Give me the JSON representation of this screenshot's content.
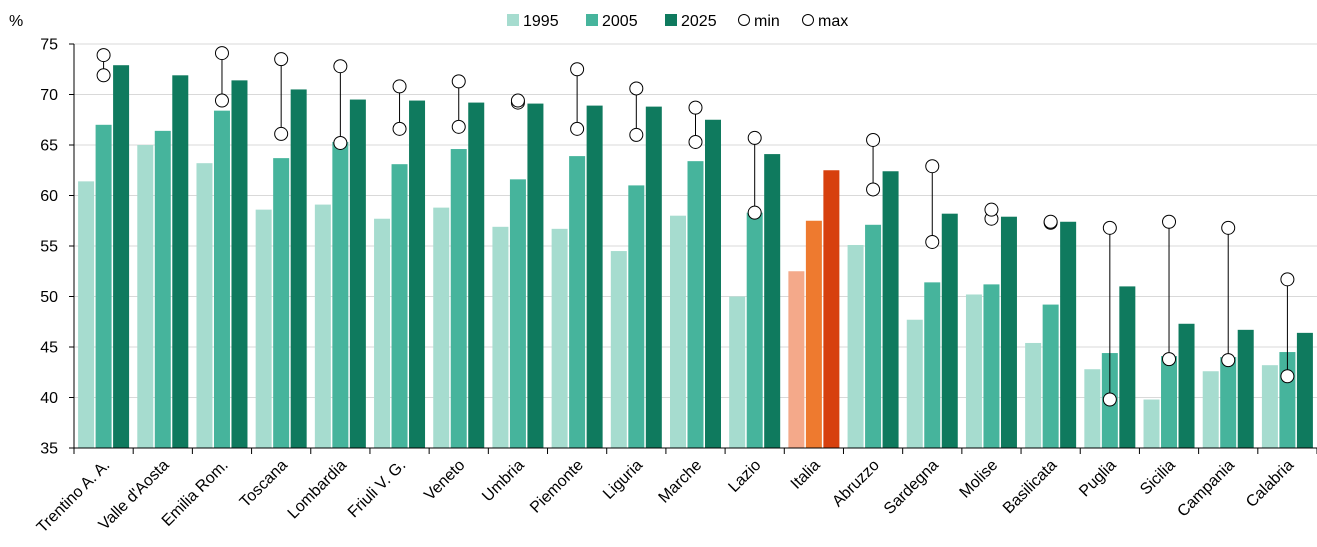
{
  "chart_data": {
    "type": "bar",
    "ylabel": "%",
    "ylim": [
      35,
      75
    ],
    "yticks": [
      35,
      40,
      45,
      50,
      55,
      60,
      65,
      70,
      75
    ],
    "grid": "horizontal",
    "legend_position": "top-center",
    "categories": [
      "Trentino A. A.",
      "Valle d'Aosta",
      "Emilia Rom.",
      "Toscana",
      "Lombardia",
      "Friuli V. G.",
      "Veneto",
      "Umbria",
      "Piemonte",
      "Liguria",
      "Marche",
      "Lazio",
      "Italia",
      "Abruzzo",
      "Sardegna",
      "Molise",
      "Basilicata",
      "Puglia",
      "Sicilia",
      "Campania",
      "Calabria"
    ],
    "highlight_category": "Italia",
    "series": [
      {
        "name": "1995",
        "color": "#a6dccf",
        "highlight_color": "#f4a98a",
        "values": [
          61.4,
          65.0,
          63.2,
          58.6,
          59.1,
          57.7,
          58.8,
          56.9,
          56.7,
          54.5,
          58.0,
          50.0,
          52.5,
          55.1,
          47.7,
          50.2,
          45.4,
          42.8,
          39.8,
          42.6,
          43.2
        ]
      },
      {
        "name": "2005",
        "color": "#46b49c",
        "highlight_color": "#ee7a2f",
        "values": [
          67.0,
          66.4,
          68.4,
          63.7,
          65.3,
          63.1,
          64.6,
          61.6,
          63.9,
          61.0,
          63.4,
          58.3,
          57.5,
          57.1,
          51.4,
          51.2,
          49.2,
          44.4,
          44.1,
          44.0,
          44.5
        ]
      },
      {
        "name": "2025",
        "color": "#0f7a5e",
        "highlight_color": "#d7400e",
        "values": [
          72.9,
          71.9,
          71.4,
          70.5,
          69.5,
          69.4,
          69.2,
          69.1,
          68.9,
          68.8,
          67.5,
          64.1,
          62.5,
          62.4,
          58.2,
          57.9,
          57.4,
          51.0,
          47.3,
          46.7,
          46.4
        ]
      }
    ],
    "min_max": {
      "min_label": "min",
      "max_label": "max",
      "min": [
        71.9,
        null,
        69.4,
        66.1,
        65.2,
        66.6,
        66.8,
        69.2,
        66.6,
        66.0,
        65.3,
        58.3,
        null,
        60.6,
        55.4,
        57.7,
        57.3,
        39.8,
        43.8,
        43.7,
        42.1
      ],
      "max": [
        73.9,
        null,
        74.1,
        73.5,
        72.8,
        70.8,
        71.3,
        69.4,
        72.5,
        70.6,
        68.7,
        65.7,
        null,
        65.5,
        62.9,
        58.6,
        57.4,
        56.8,
        57.4,
        56.8,
        51.7
      ]
    }
  }
}
